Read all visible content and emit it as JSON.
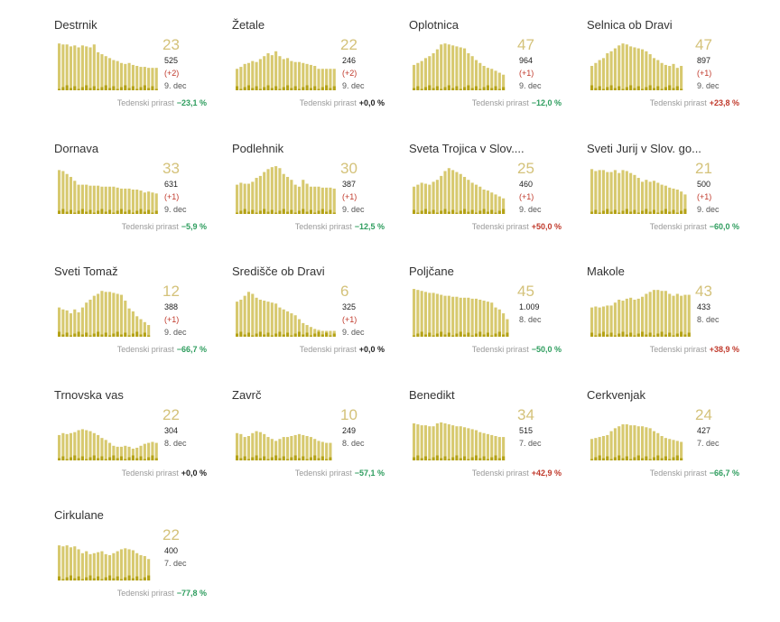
{
  "growth_label": "Tedenski prirast",
  "colors": {
    "bar_total": "#d7c96f",
    "bar_total_alt": "#d1c169",
    "bar_new": "#b4a216",
    "big_number": "#d4c27a",
    "negative_growth": "#2e9d5e",
    "positive_growth": "#c0392b",
    "zero_growth": "#222222"
  },
  "chart_data": [
    {
      "type": "bar",
      "title": "Destrnik",
      "big": "23",
      "total": "525",
      "delta": "(+2)",
      "date": "9. dec",
      "growth": "−23,1 %",
      "growth_color": "green",
      "values": [
        48,
        47,
        47,
        45,
        46,
        44,
        46,
        45,
        44,
        47,
        39,
        37,
        35,
        33,
        31,
        30,
        28,
        27,
        28,
        26,
        25,
        24,
        24,
        23,
        23,
        23
      ]
    },
    {
      "type": "bar",
      "title": "Žetale",
      "big": "22",
      "total": "246",
      "delta": "(+2)",
      "date": "9. dec",
      "growth": "+0,0 %",
      "growth_color": "black",
      "values": [
        22,
        24,
        27,
        28,
        30,
        29,
        32,
        35,
        38,
        36,
        40,
        35,
        32,
        33,
        30,
        29,
        29,
        28,
        27,
        26,
        25,
        22,
        22,
        22,
        22,
        22
      ]
    },
    {
      "type": "bar",
      "title": "Oplotnica",
      "big": "47",
      "total": "964",
      "delta": "(+1)",
      "date": "9. dec",
      "growth": "−12,0 %",
      "growth_color": "green",
      "values": [
        26,
        28,
        30,
        33,
        35,
        38,
        42,
        47,
        48,
        47,
        46,
        45,
        44,
        43,
        38,
        35,
        31,
        28,
        25,
        23,
        22,
        20,
        18,
        16,
        0,
        0
      ]
    },
    {
      "type": "bar",
      "title": "Selnica ob Dravi",
      "big": "47",
      "total": "897",
      "delta": "(+1)",
      "date": "9. dec",
      "growth": "+23,8 %",
      "growth_color": "red",
      "values": [
        25,
        28,
        31,
        33,
        38,
        40,
        43,
        46,
        48,
        47,
        45,
        44,
        43,
        42,
        40,
        37,
        33,
        31,
        28,
        26,
        25,
        27,
        23,
        25,
        0,
        0
      ]
    },
    {
      "type": "bar",
      "title": "Dornava",
      "big": "33",
      "total": "631",
      "delta": "(+1)",
      "date": "9. dec",
      "growth": "−5,9 %",
      "growth_color": "green",
      "values": [
        45,
        44,
        41,
        38,
        34,
        30,
        30,
        30,
        29,
        29,
        29,
        28,
        28,
        28,
        28,
        27,
        26,
        26,
        26,
        25,
        25,
        24,
        22,
        23,
        22,
        21
      ]
    },
    {
      "type": "bar",
      "title": "Podlehnik",
      "big": "30",
      "total": "387",
      "delta": "(+1)",
      "date": "9. dec",
      "growth": "−12,5 %",
      "growth_color": "green",
      "values": [
        30,
        32,
        31,
        31,
        33,
        37,
        39,
        43,
        46,
        48,
        49,
        47,
        41,
        38,
        35,
        30,
        28,
        35,
        31,
        28,
        28,
        28,
        27,
        27,
        27,
        26
      ]
    },
    {
      "type": "bar",
      "title": "Sveta Trojica v Slov....",
      "big": "25",
      "total": "460",
      "delta": "(+1)",
      "date": "9. dec",
      "growth": "+50,0 %",
      "growth_color": "red",
      "values": [
        28,
        30,
        32,
        31,
        30,
        33,
        35,
        39,
        44,
        47,
        45,
        43,
        41,
        38,
        35,
        32,
        30,
        28,
        25,
        24,
        22,
        20,
        18,
        16,
        0,
        0
      ]
    },
    {
      "type": "bar",
      "title": "Sveti Jurij v Slov. go...",
      "big": "21",
      "total": "500",
      "delta": "(+1)",
      "date": "9. dec",
      "growth": "−60,0 %",
      "growth_color": "green",
      "values": [
        46,
        44,
        45,
        45,
        43,
        43,
        45,
        42,
        45,
        44,
        42,
        40,
        37,
        33,
        35,
        33,
        34,
        32,
        30,
        29,
        27,
        26,
        25,
        23,
        20,
        0
      ]
    },
    {
      "type": "bar",
      "title": "Sveti Tomaž",
      "big": "12",
      "total": "388",
      "delta": "(+1)",
      "date": "9. dec",
      "growth": "−66,7 %",
      "growth_color": "green",
      "values": [
        30,
        28,
        27,
        24,
        28,
        25,
        30,
        35,
        38,
        42,
        44,
        47,
        46,
        46,
        45,
        44,
        43,
        37,
        29,
        26,
        21,
        18,
        15,
        12,
        0,
        0
      ]
    },
    {
      "type": "bar",
      "title": "Središče ob Dravi",
      "big": "6",
      "total": "325",
      "delta": "(+1)",
      "date": "9. dec",
      "growth": "+0,0 %",
      "growth_color": "black",
      "values": [
        36,
        38,
        42,
        46,
        44,
        40,
        38,
        37,
        36,
        35,
        34,
        30,
        28,
        26,
        24,
        22,
        18,
        14,
        12,
        10,
        8,
        7,
        6,
        6,
        6,
        6
      ]
    },
    {
      "type": "bar",
      "title": "Poljčane",
      "big": "45",
      "total": "1.009",
      "delta": "",
      "date": "8. dec",
      "growth": "−50,0 %",
      "growth_color": "green",
      "values": [
        49,
        48,
        47,
        46,
        45,
        45,
        44,
        43,
        42,
        42,
        41,
        41,
        40,
        40,
        40,
        39,
        39,
        38,
        37,
        36,
        35,
        30,
        28,
        24,
        18,
        0
      ]
    },
    {
      "type": "bar",
      "title": "Makole",
      "big": "43",
      "total": "433",
      "delta": "",
      "date": "8. dec",
      "growth": "+38,9 %",
      "growth_color": "red",
      "values": [
        30,
        31,
        30,
        31,
        32,
        32,
        35,
        38,
        37,
        39,
        40,
        38,
        39,
        41,
        44,
        46,
        48,
        48,
        47,
        47,
        44,
        42,
        44,
        42,
        43,
        43
      ]
    },
    {
      "type": "bar",
      "title": "Trnovska vas",
      "big": "22",
      "total": "304",
      "delta": "",
      "date": "8. dec",
      "growth": "+0,0 %",
      "growth_color": "black",
      "values": [
        26,
        28,
        27,
        28,
        29,
        31,
        32,
        31,
        30,
        28,
        26,
        23,
        21,
        18,
        15,
        14,
        14,
        15,
        14,
        12,
        13,
        15,
        17,
        18,
        19,
        18
      ]
    },
    {
      "type": "bar",
      "title": "Zavrč",
      "big": "10",
      "total": "249",
      "delta": "",
      "date": "8. dec",
      "growth": "−57,1 %",
      "growth_color": "green",
      "values": [
        28,
        27,
        24,
        25,
        28,
        30,
        29,
        27,
        24,
        22,
        20,
        22,
        24,
        24,
        25,
        26,
        27,
        26,
        25,
        24,
        22,
        20,
        19,
        18,
        18,
        0
      ]
    },
    {
      "type": "bar",
      "title": "Benedikt",
      "big": "34",
      "total": "515",
      "delta": "",
      "date": "7. dec",
      "growth": "+42,9 %",
      "growth_color": "red",
      "values": [
        38,
        37,
        36,
        36,
        35,
        35,
        38,
        39,
        38,
        37,
        36,
        35,
        35,
        34,
        33,
        32,
        31,
        29,
        28,
        27,
        26,
        25,
        24,
        24,
        0,
        0
      ]
    },
    {
      "type": "bar",
      "title": "Cerkvenjak",
      "big": "24",
      "total": "427",
      "delta": "",
      "date": "7. dec",
      "growth": "−66,7 %",
      "growth_color": "green",
      "values": [
        22,
        23,
        24,
        25,
        26,
        30,
        33,
        35,
        37,
        37,
        36,
        36,
        35,
        35,
        34,
        33,
        30,
        28,
        25,
        23,
        22,
        21,
        20,
        19,
        0,
        0
      ]
    },
    {
      "type": "bar",
      "title": "Cirkulane",
      "big": "22",
      "total": "400",
      "delta": "",
      "date": "7. dec",
      "growth": "−77,8 %",
      "growth_color": "green",
      "values": [
        36,
        35,
        36,
        34,
        35,
        32,
        28,
        30,
        27,
        28,
        29,
        30,
        27,
        26,
        28,
        30,
        32,
        33,
        32,
        31,
        28,
        26,
        25,
        22,
        0,
        0
      ]
    }
  ]
}
